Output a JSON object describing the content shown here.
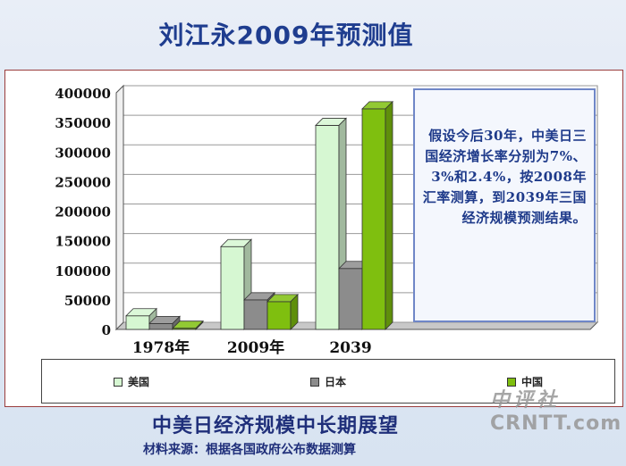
{
  "slide": {
    "title": "刘江永2009年预测值",
    "footer_title": "中美日经济规模中长期展望",
    "footer_source": "材料来源：根据各国政府公布数据测算"
  },
  "note": {
    "text": "假设今后30年，中美日三国经济增长率分别为7%、3%和2.4%，按2008年汇率测算，到2039年三国经济规模预测结果。"
  },
  "watermark": {
    "cn": "中评社",
    "en": "CRNTT.com"
  },
  "colors": {
    "美国": "#d6f7d2",
    "日本": "#8c8c8c",
    "中国": "#7fbf0f",
    "title": "#1f3d8f"
  },
  "chart_data": {
    "type": "bar",
    "categories": [
      "1978年",
      "2009年",
      "2039"
    ],
    "series": [
      {
        "name": "美国",
        "values": [
          23000,
          140000,
          345000
        ]
      },
      {
        "name": "日本",
        "values": [
          10000,
          50000,
          103000
        ]
      },
      {
        "name": "中国",
        "values": [
          2000,
          47000,
          373000
        ]
      }
    ],
    "ylim": [
      0,
      400000
    ],
    "yticks": [
      "0",
      "50000",
      "100000",
      "150000",
      "200000",
      "250000",
      "300000",
      "350000",
      "400000"
    ],
    "grid": true,
    "legend_position": "bottom"
  }
}
